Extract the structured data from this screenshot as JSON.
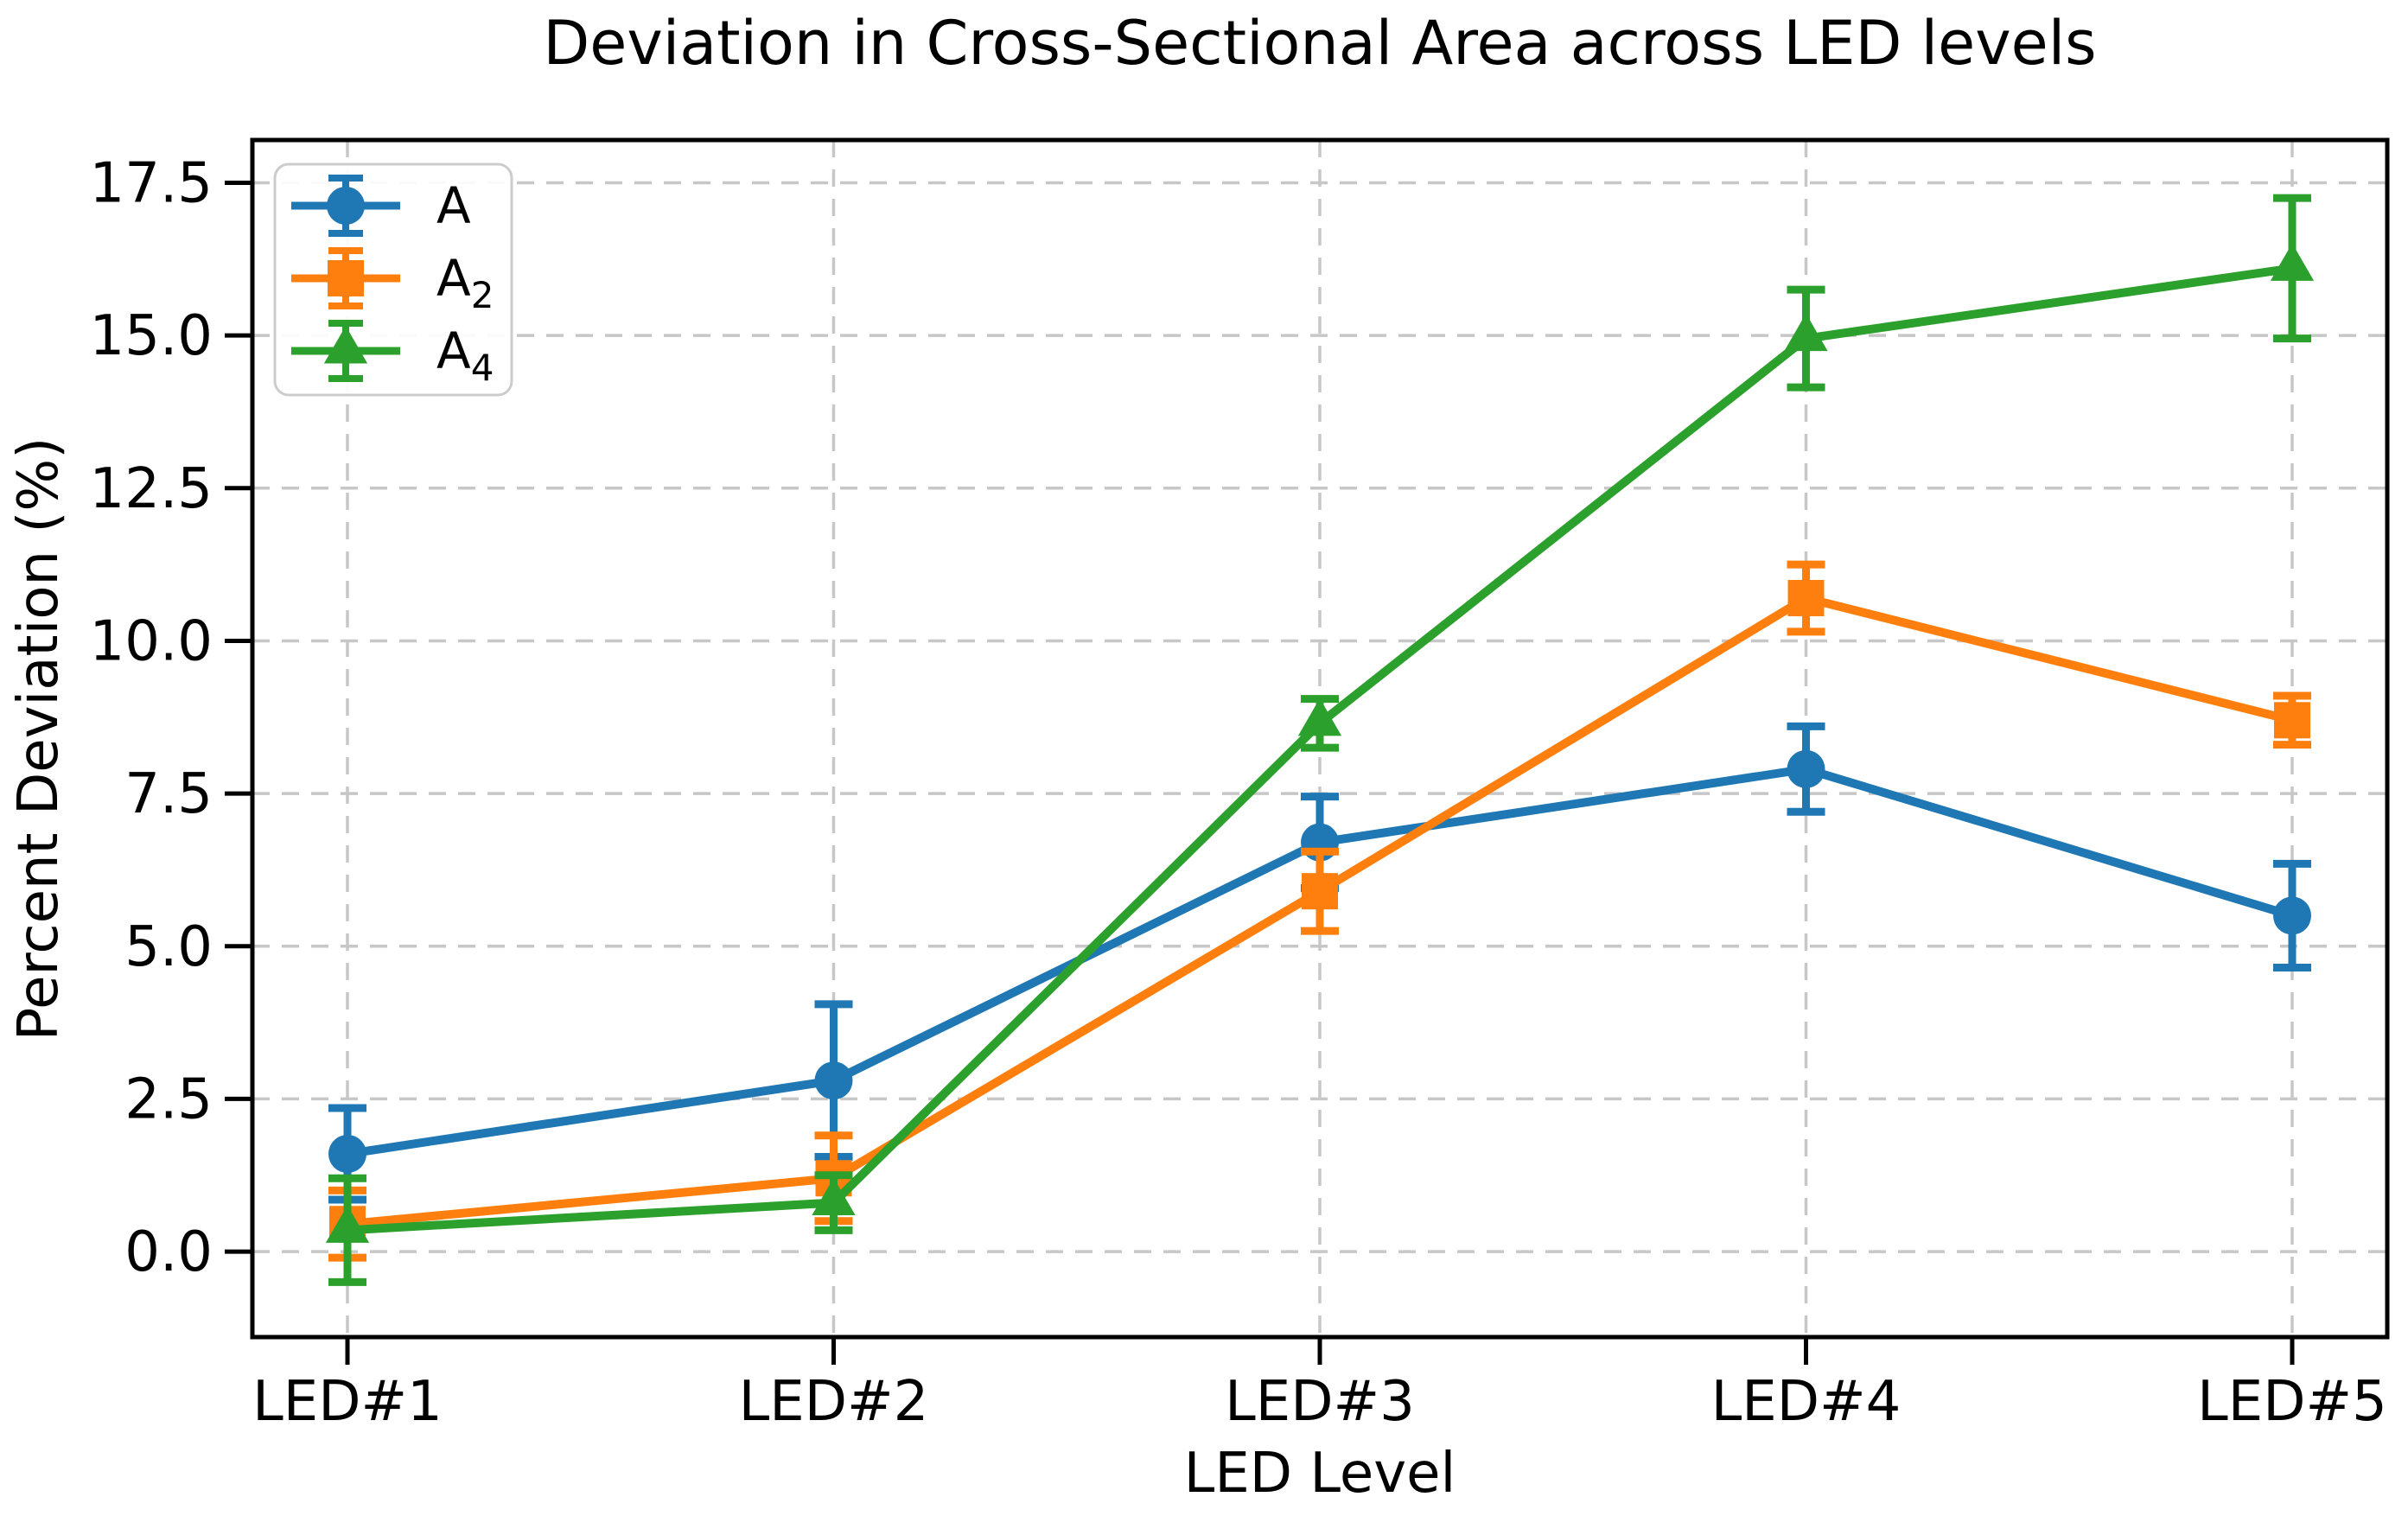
{
  "chart_data": {
    "type": "line",
    "title": "Deviation in Cross-Sectional Area across LED levels",
    "xlabel": "LED Level",
    "ylabel": "Percent Deviation (%)",
    "categories": [
      "LED#1",
      "LED#2",
      "LED#3",
      "LED#4",
      "LED#5"
    ],
    "y_ticks": [
      {
        "value": 0.0,
        "label": "0.0"
      },
      {
        "value": 2.5,
        "label": "2.5"
      },
      {
        "value": 5.0,
        "label": "5.0"
      },
      {
        "value": 7.5,
        "label": "7.5"
      },
      {
        "value": 10.0,
        "label": "10.0"
      },
      {
        "value": 12.5,
        "label": "12.5"
      },
      {
        "value": 15.0,
        "label": "15.0"
      },
      {
        "value": 17.5,
        "label": "17.5"
      }
    ],
    "ylim": [
      -1.4,
      18.2
    ],
    "grid": true,
    "legend_position": "upper left",
    "series": [
      {
        "name": "A",
        "sub": "",
        "color": "#1f77b4",
        "marker": "circle",
        "values": [
          1.6,
          2.8,
          6.7,
          7.9,
          5.5
        ],
        "errors": [
          0.75,
          1.25,
          0.75,
          0.7,
          0.85
        ]
      },
      {
        "name": "A",
        "sub": "2",
        "color": "#ff7f0e",
        "marker": "square",
        "values": [
          0.45,
          1.2,
          5.9,
          10.7,
          8.7
        ],
        "errors": [
          0.55,
          0.7,
          0.65,
          0.55,
          0.4
        ]
      },
      {
        "name": "A",
        "sub": "4",
        "color": "#2ca02c",
        "marker": "triangle-up",
        "values": [
          0.35,
          0.8,
          8.65,
          14.95,
          16.1
        ],
        "errors": [
          0.85,
          0.45,
          0.4,
          0.8,
          1.15
        ]
      }
    ]
  }
}
